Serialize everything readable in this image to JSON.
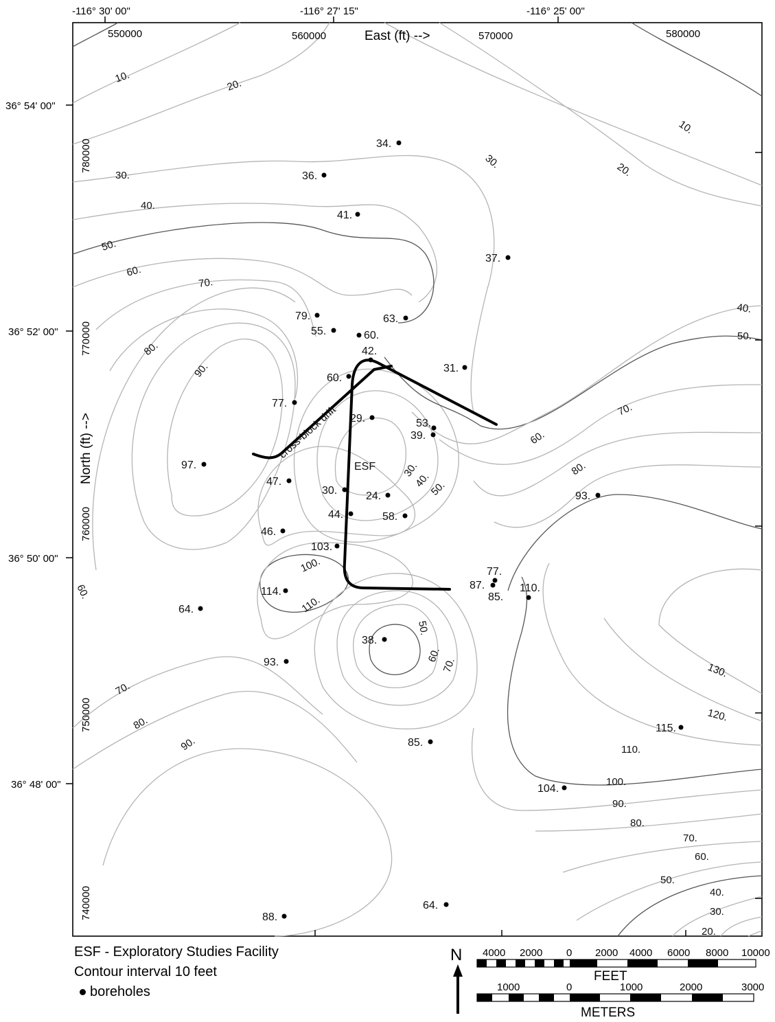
{
  "coords": {
    "top": [
      "-116° 30' 00\"",
      "-116° 27' 15\"",
      "-116° 25' 00\""
    ],
    "left": [
      "36° 54' 00\"",
      "36° 52' 00\"",
      "36° 50' 00\"",
      "36° 48' 00\""
    ],
    "east": [
      "550000",
      "560000",
      "570000",
      "580000"
    ],
    "north": [
      "780000",
      "770000",
      "760000",
      "750000",
      "740000"
    ]
  },
  "axes": {
    "x_label": "East  (ft)  -->",
    "y_label": "North  (ft)  -->"
  },
  "features": {
    "esf": "ESF",
    "drift": "cross-block drift"
  },
  "boreholes": [
    {
      "id": "bh-1",
      "v": "34."
    },
    {
      "id": "bh-2",
      "v": "36."
    },
    {
      "id": "bh-3",
      "v": "41."
    },
    {
      "id": "bh-4",
      "v": "37."
    },
    {
      "id": "bh-5",
      "v": "79."
    },
    {
      "id": "bh-6",
      "v": "55."
    },
    {
      "id": "bh-7",
      "v": "60."
    },
    {
      "id": "bh-8",
      "v": "63."
    },
    {
      "id": "bh-9",
      "v": "42."
    },
    {
      "id": "bh-10",
      "v": "60."
    },
    {
      "id": "bh-11",
      "v": "31."
    },
    {
      "id": "bh-12",
      "v": "77."
    },
    {
      "id": "bh-13",
      "v": "29."
    },
    {
      "id": "bh-14",
      "v": "53."
    },
    {
      "id": "bh-15",
      "v": "39."
    },
    {
      "id": "bh-16",
      "v": "97."
    },
    {
      "id": "bh-17",
      "v": "47."
    },
    {
      "id": "bh-18",
      "v": "30."
    },
    {
      "id": "bh-19",
      "v": "24."
    },
    {
      "id": "bh-20",
      "v": "44."
    },
    {
      "id": "bh-21",
      "v": "58."
    },
    {
      "id": "bh-22",
      "v": "46."
    },
    {
      "id": "bh-23",
      "v": "93."
    },
    {
      "id": "bh-24",
      "v": "103."
    },
    {
      "id": "bh-25",
      "v": "77."
    },
    {
      "id": "bh-26",
      "v": "87."
    },
    {
      "id": "bh-27",
      "v": "85."
    },
    {
      "id": "bh-28",
      "v": "110."
    },
    {
      "id": "bh-29",
      "v": "114."
    },
    {
      "id": "bh-30",
      "v": "64."
    },
    {
      "id": "bh-31",
      "v": "38."
    },
    {
      "id": "bh-32",
      "v": "93."
    },
    {
      "id": "bh-33",
      "v": "115."
    },
    {
      "id": "bh-34",
      "v": "85."
    },
    {
      "id": "bh-35",
      "v": "104."
    },
    {
      "id": "bh-36",
      "v": "64."
    },
    {
      "id": "bh-37",
      "v": "88."
    }
  ],
  "contour_labels": {
    "c1": "10.",
    "c2": "20.",
    "c3": "30.",
    "c4": "40.",
    "c5": "50.",
    "c6": "60.",
    "c7": "70.",
    "c8": "80.",
    "c9": "90.",
    "c10": "10.",
    "c11": "20.",
    "c12": "30.",
    "c13": "40.",
    "c14": "50.",
    "c15": "70.",
    "c16": "60.",
    "c17": "80.",
    "c18": "30.",
    "c19": "40.",
    "c20": "50.",
    "c21": "100.",
    "c22": "110.",
    "c23": "60.",
    "c24": "50.",
    "c25": "60.",
    "c26": "70.",
    "c27": "130.",
    "c28": "120.",
    "c29": "110.",
    "c30": "100.",
    "c31": "90.",
    "c32": "80.",
    "c33": "70.",
    "c34": "60.",
    "c35": "50.",
    "c36": "40.",
    "c37": "30.",
    "c38": "20.",
    "c39": "70.",
    "c40": "80.",
    "c41": "90."
  },
  "legend": {
    "line1": "ESF - Exploratory Studies Facility",
    "line2": "Contour interval 10 feet",
    "line3": "boreholes"
  },
  "north": "N",
  "scale": {
    "feet_ticks": [
      "4000",
      "2000",
      "0",
      "2000",
      "4000",
      "6000",
      "8000",
      "10000"
    ],
    "feet_unit": "FEET",
    "meter_ticks": [
      "1000",
      "0",
      "1000",
      "2000",
      "3000"
    ],
    "meter_unit": "METERS"
  }
}
